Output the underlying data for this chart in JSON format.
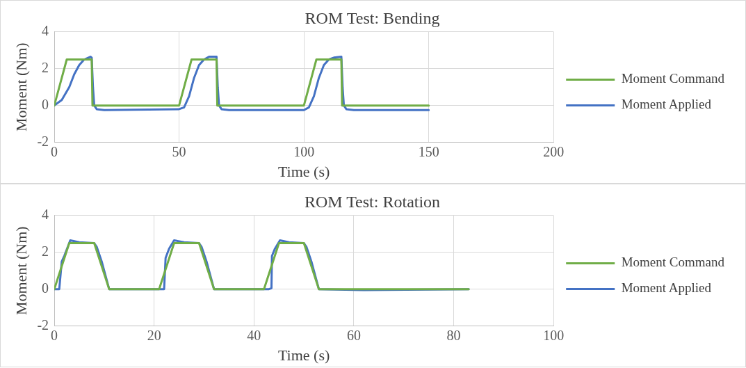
{
  "chart_data": [
    {
      "type": "line",
      "title": "ROM Test: Bending",
      "xlabel": "Time (s)",
      "ylabel": "Moment (Nm)",
      "xlim": [
        0,
        200
      ],
      "xticks": [
        0,
        50,
        100,
        150,
        200
      ],
      "ylim": [
        -2,
        4
      ],
      "yticks": [
        -2,
        0,
        2,
        4
      ],
      "grid": true,
      "legend": "right",
      "marker": "none",
      "line_style": "solid",
      "series": [
        {
          "name": "Moment Command",
          "color": "#70ad47",
          "x": [
            0,
            5,
            15,
            15.3,
            50,
            55,
            65,
            65.3,
            100,
            105,
            115,
            115.3,
            150
          ],
          "values": [
            0,
            2.5,
            2.5,
            0,
            0,
            2.5,
            2.5,
            0,
            0,
            2.5,
            2.5,
            0,
            0
          ]
        },
        {
          "name": "Moment Applied",
          "color": "#4472c4",
          "x": [
            0,
            3,
            6,
            8,
            10,
            12,
            14.5,
            15,
            15.5,
            16,
            17,
            20,
            50,
            52,
            54,
            56,
            58,
            60,
            62,
            65,
            65.5,
            66,
            67,
            70,
            100,
            102,
            104,
            106,
            108,
            110,
            112,
            115,
            115.5,
            116,
            117,
            120,
            150
          ],
          "values": [
            0,
            0.3,
            1,
            1.7,
            2.2,
            2.5,
            2.65,
            2.6,
            1,
            0,
            -0.2,
            -0.25,
            -0.2,
            -0.1,
            0.5,
            1.5,
            2.2,
            2.5,
            2.65,
            2.65,
            1,
            0,
            -0.2,
            -0.25,
            -0.25,
            -0.1,
            0.5,
            1.5,
            2.2,
            2.5,
            2.6,
            2.65,
            1,
            0,
            -0.2,
            -0.25,
            -0.25
          ]
        }
      ]
    },
    {
      "type": "line",
      "title": "ROM Test: Rotation",
      "xlabel": "Time (s)",
      "ylabel": "Moment (Nm)",
      "xlim": [
        0,
        100
      ],
      "xticks": [
        0,
        20,
        40,
        60,
        80,
        100
      ],
      "ylim": [
        -2,
        4
      ],
      "yticks": [
        -2,
        0,
        2,
        4
      ],
      "grid": true,
      "legend": "right",
      "marker": "none",
      "line_style": "solid",
      "series": [
        {
          "name": "Moment Command",
          "color": "#70ad47",
          "x": [
            0,
            3,
            8,
            11,
            21,
            24,
            29,
            32,
            42,
            45,
            50,
            53,
            83
          ],
          "values": [
            0,
            2.5,
            2.5,
            0,
            0,
            2.5,
            2.5,
            0,
            0,
            2.5,
            2.5,
            0,
            0
          ]
        },
        {
          "name": "Moment Applied",
          "color": "#4472c4",
          "x": [
            0,
            1,
            1.5,
            2,
            3.2,
            5,
            8,
            8.5,
            9.5,
            10.5,
            11,
            21,
            22,
            22.3,
            23,
            24,
            26,
            29,
            29.5,
            30.5,
            31.5,
            32,
            43,
            43.5,
            43.6,
            44.2,
            45.2,
            47,
            50,
            50.5,
            51.5,
            52.5,
            53,
            62,
            83
          ],
          "values": [
            0,
            0,
            1.5,
            1.8,
            2.65,
            2.55,
            2.5,
            2.3,
            1.5,
            0.5,
            0,
            0,
            0,
            1.7,
            2.2,
            2.65,
            2.55,
            2.5,
            2.3,
            1.5,
            0.5,
            0,
            0,
            0.05,
            1.8,
            2.2,
            2.65,
            2.55,
            2.5,
            2.3,
            1.5,
            0.5,
            0,
            -0.05,
            0
          ]
        }
      ]
    }
  ]
}
